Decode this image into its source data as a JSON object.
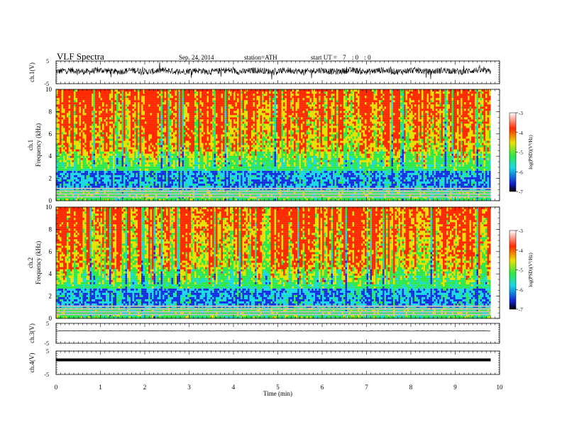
{
  "header": {
    "title": "VLF  Spectra",
    "date": "Sep. 24, 2014",
    "station": "station=ATH",
    "start_label": "start  UT  =",
    "start_h": "7",
    "start_m": ": 0",
    "start_s": ": 0"
  },
  "colors": {
    "trace": "#000000",
    "red": "#ff2a00",
    "yellow": "#e8e000",
    "green": "#2ee84a",
    "cyan": "#19d8e8",
    "blue": "#1530e0"
  },
  "chart_data": [
    {
      "type": "line",
      "ylabel": "ch.1(V)",
      "ylim": [
        -5,
        5
      ],
      "yticks": [
        "5",
        "-5"
      ],
      "description_values": {
        "baseline": 0,
        "amplitude": 2.5
      }
    },
    {
      "type": "heatmap",
      "channel": "ch.1",
      "ylabel": "Frequency  (kHz)",
      "ylim": [
        0,
        10
      ],
      "yticks": [
        "0",
        "2",
        "4",
        "6",
        "8",
        "10"
      ],
      "colorbar": {
        "label": "log(PSD)(V²/Hz)",
        "ticks": [
          "-3",
          "-4",
          "-5",
          "-6",
          "-7"
        ],
        "range": [
          -7,
          -3
        ]
      }
    },
    {
      "type": "heatmap",
      "channel": "ch.2",
      "ylabel": "Frequency  (kHz)",
      "ylim": [
        0,
        10
      ],
      "yticks": [
        "0",
        "2",
        "4",
        "6",
        "8",
        "10"
      ],
      "colorbar": {
        "label": "log(PSD)(V²/Hz)",
        "ticks": [
          "-3",
          "-4",
          "-5",
          "-6",
          "-7"
        ],
        "range": [
          -7,
          -3
        ]
      }
    },
    {
      "type": "line",
      "ylabel": "ch.3(V)",
      "ylim": [
        -5,
        5
      ],
      "yticks": [
        "5",
        "-5"
      ]
    },
    {
      "type": "line",
      "ylabel": "ch.4(V)",
      "ylim": [
        -5,
        5
      ],
      "yticks": [
        "5",
        "-5"
      ]
    },
    {
      "type": "axis",
      "xlabel": "Time  (min)",
      "xlim": [
        0,
        10
      ],
      "xticks": [
        "0",
        "1",
        "2",
        "3",
        "4",
        "5",
        "6",
        "7",
        "8",
        "9",
        "10"
      ],
      "data_end": 9.8
    }
  ]
}
